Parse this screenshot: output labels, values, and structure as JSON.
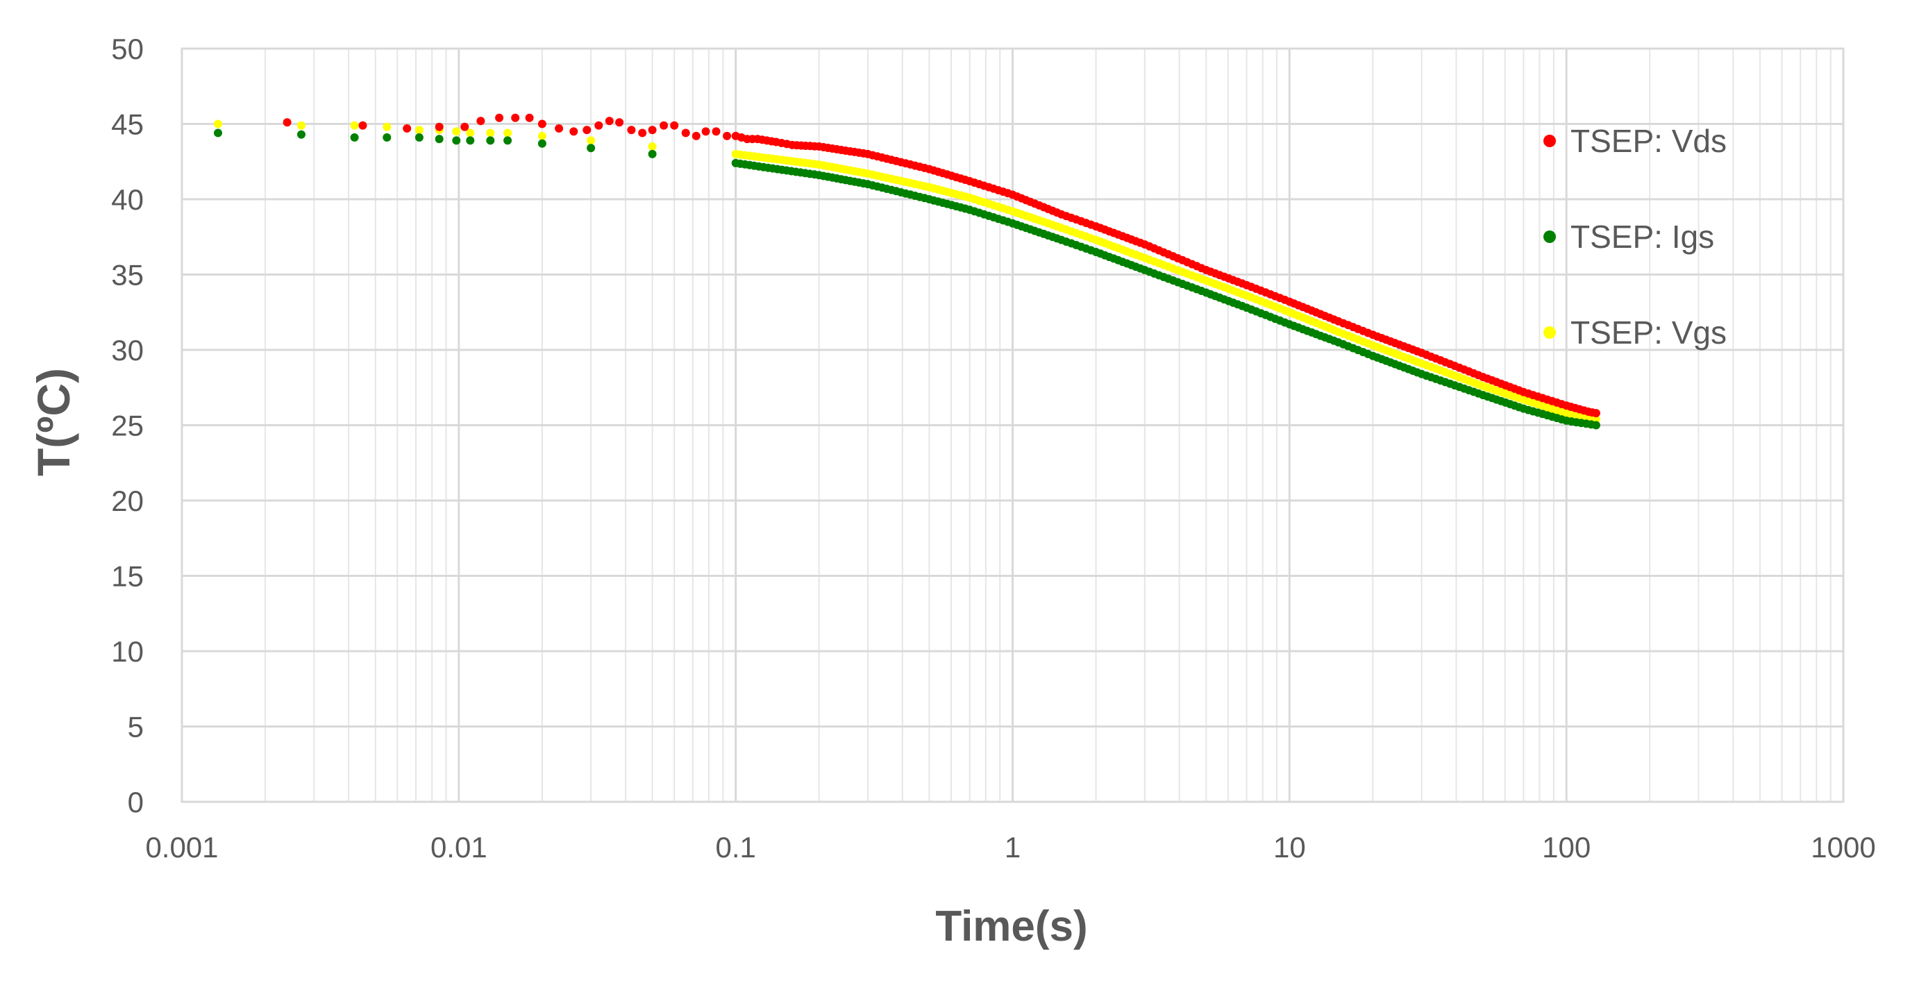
{
  "chart_data": {
    "type": "scatter",
    "title": "",
    "xlabel": "Time(s)",
    "ylabel": "T(ºC)",
    "xscale": "log",
    "xlim": [
      0.001,
      1000
    ],
    "ylim": [
      0,
      50
    ],
    "y_ticks": [
      0,
      5,
      10,
      15,
      20,
      25,
      30,
      35,
      40,
      45,
      50
    ],
    "x_tick_labels": [
      "0.001",
      "0.01",
      "0.1",
      "1",
      "10",
      "100",
      "1000"
    ],
    "grid": true,
    "legend_position": "right",
    "colors": {
      "vds": "#ff0000",
      "igs": "#008000",
      "vgs": "#ffff00"
    },
    "series": [
      {
        "name": "TSEP: Vds",
        "color": "#ff0000",
        "points": [
          [
            0.0024,
            45.1
          ],
          [
            0.0045,
            44.9
          ],
          [
            0.0065,
            44.7
          ],
          [
            0.0085,
            44.8
          ],
          [
            0.0105,
            44.8
          ],
          [
            0.012,
            45.2
          ],
          [
            0.014,
            45.4
          ],
          [
            0.016,
            45.4
          ],
          [
            0.018,
            45.4
          ],
          [
            0.02,
            45.0
          ],
          [
            0.023,
            44.7
          ],
          [
            0.026,
            44.5
          ],
          [
            0.029,
            44.6
          ],
          [
            0.032,
            44.9
          ],
          [
            0.035,
            45.2
          ],
          [
            0.038,
            45.1
          ],
          [
            0.042,
            44.6
          ],
          [
            0.046,
            44.4
          ],
          [
            0.05,
            44.6
          ],
          [
            0.055,
            44.9
          ],
          [
            0.06,
            44.9
          ],
          [
            0.066,
            44.4
          ],
          [
            0.072,
            44.2
          ],
          [
            0.078,
            44.5
          ],
          [
            0.085,
            44.5
          ],
          [
            0.093,
            44.2
          ],
          [
            0.1,
            44.2
          ],
          [
            0.11,
            44.0
          ],
          [
            0.12,
            44.0
          ],
          [
            0.14,
            43.8
          ],
          [
            0.16,
            43.6
          ],
          [
            0.2,
            43.5
          ],
          [
            0.3,
            43.0
          ],
          [
            0.5,
            42.0
          ],
          [
            0.7,
            41.2
          ],
          [
            1,
            40.3
          ],
          [
            1.5,
            39.0
          ],
          [
            2,
            38.2
          ],
          [
            3,
            37.0
          ],
          [
            5,
            35.3
          ],
          [
            7,
            34.3
          ],
          [
            10,
            33.2
          ],
          [
            15,
            31.9
          ],
          [
            20,
            31.0
          ],
          [
            30,
            29.8
          ],
          [
            50,
            28.2
          ],
          [
            70,
            27.2
          ],
          [
            100,
            26.3
          ],
          [
            120,
            25.9
          ],
          [
            128,
            25.8
          ]
        ]
      },
      {
        "name": "TSEP: Igs",
        "color": "#008000",
        "points": [
          [
            0.00135,
            44.4
          ],
          [
            0.0027,
            44.3
          ],
          [
            0.0042,
            44.1
          ],
          [
            0.0055,
            44.1
          ],
          [
            0.0072,
            44.1
          ],
          [
            0.0085,
            44.0
          ],
          [
            0.0098,
            43.9
          ],
          [
            0.011,
            43.9
          ],
          [
            0.013,
            43.9
          ],
          [
            0.015,
            43.9
          ],
          [
            0.02,
            43.7
          ],
          [
            0.03,
            43.4
          ],
          [
            0.05,
            43.0
          ],
          [
            0.1,
            42.4
          ],
          [
            0.2,
            41.6
          ],
          [
            0.3,
            41.0
          ],
          [
            0.5,
            40.0
          ],
          [
            0.7,
            39.3
          ],
          [
            1,
            38.4
          ],
          [
            1.5,
            37.3
          ],
          [
            2,
            36.5
          ],
          [
            3,
            35.3
          ],
          [
            5,
            33.8
          ],
          [
            7,
            32.8
          ],
          [
            10,
            31.7
          ],
          [
            15,
            30.5
          ],
          [
            20,
            29.6
          ],
          [
            30,
            28.4
          ],
          [
            50,
            27.0
          ],
          [
            70,
            26.1
          ],
          [
            100,
            25.3
          ],
          [
            128,
            25.0
          ]
        ]
      },
      {
        "name": "TSEP: Vgs",
        "color": "#ffff00",
        "points": [
          [
            0.00135,
            45.0
          ],
          [
            0.0027,
            44.9
          ],
          [
            0.0042,
            44.9
          ],
          [
            0.0055,
            44.8
          ],
          [
            0.0072,
            44.6
          ],
          [
            0.0085,
            44.6
          ],
          [
            0.0098,
            44.5
          ],
          [
            0.011,
            44.4
          ],
          [
            0.013,
            44.4
          ],
          [
            0.015,
            44.4
          ],
          [
            0.02,
            44.2
          ],
          [
            0.03,
            43.9
          ],
          [
            0.05,
            43.5
          ],
          [
            0.1,
            43.0
          ],
          [
            0.2,
            42.3
          ],
          [
            0.3,
            41.7
          ],
          [
            0.5,
            40.8
          ],
          [
            0.7,
            40.1
          ],
          [
            1,
            39.2
          ],
          [
            1.5,
            38.1
          ],
          [
            2,
            37.3
          ],
          [
            3,
            36.1
          ],
          [
            5,
            34.6
          ],
          [
            7,
            33.6
          ],
          [
            10,
            32.5
          ],
          [
            15,
            31.2
          ],
          [
            20,
            30.3
          ],
          [
            30,
            29.1
          ],
          [
            50,
            27.6
          ],
          [
            70,
            26.7
          ],
          [
            100,
            25.8
          ],
          [
            128,
            25.4
          ]
        ]
      }
    ]
  }
}
